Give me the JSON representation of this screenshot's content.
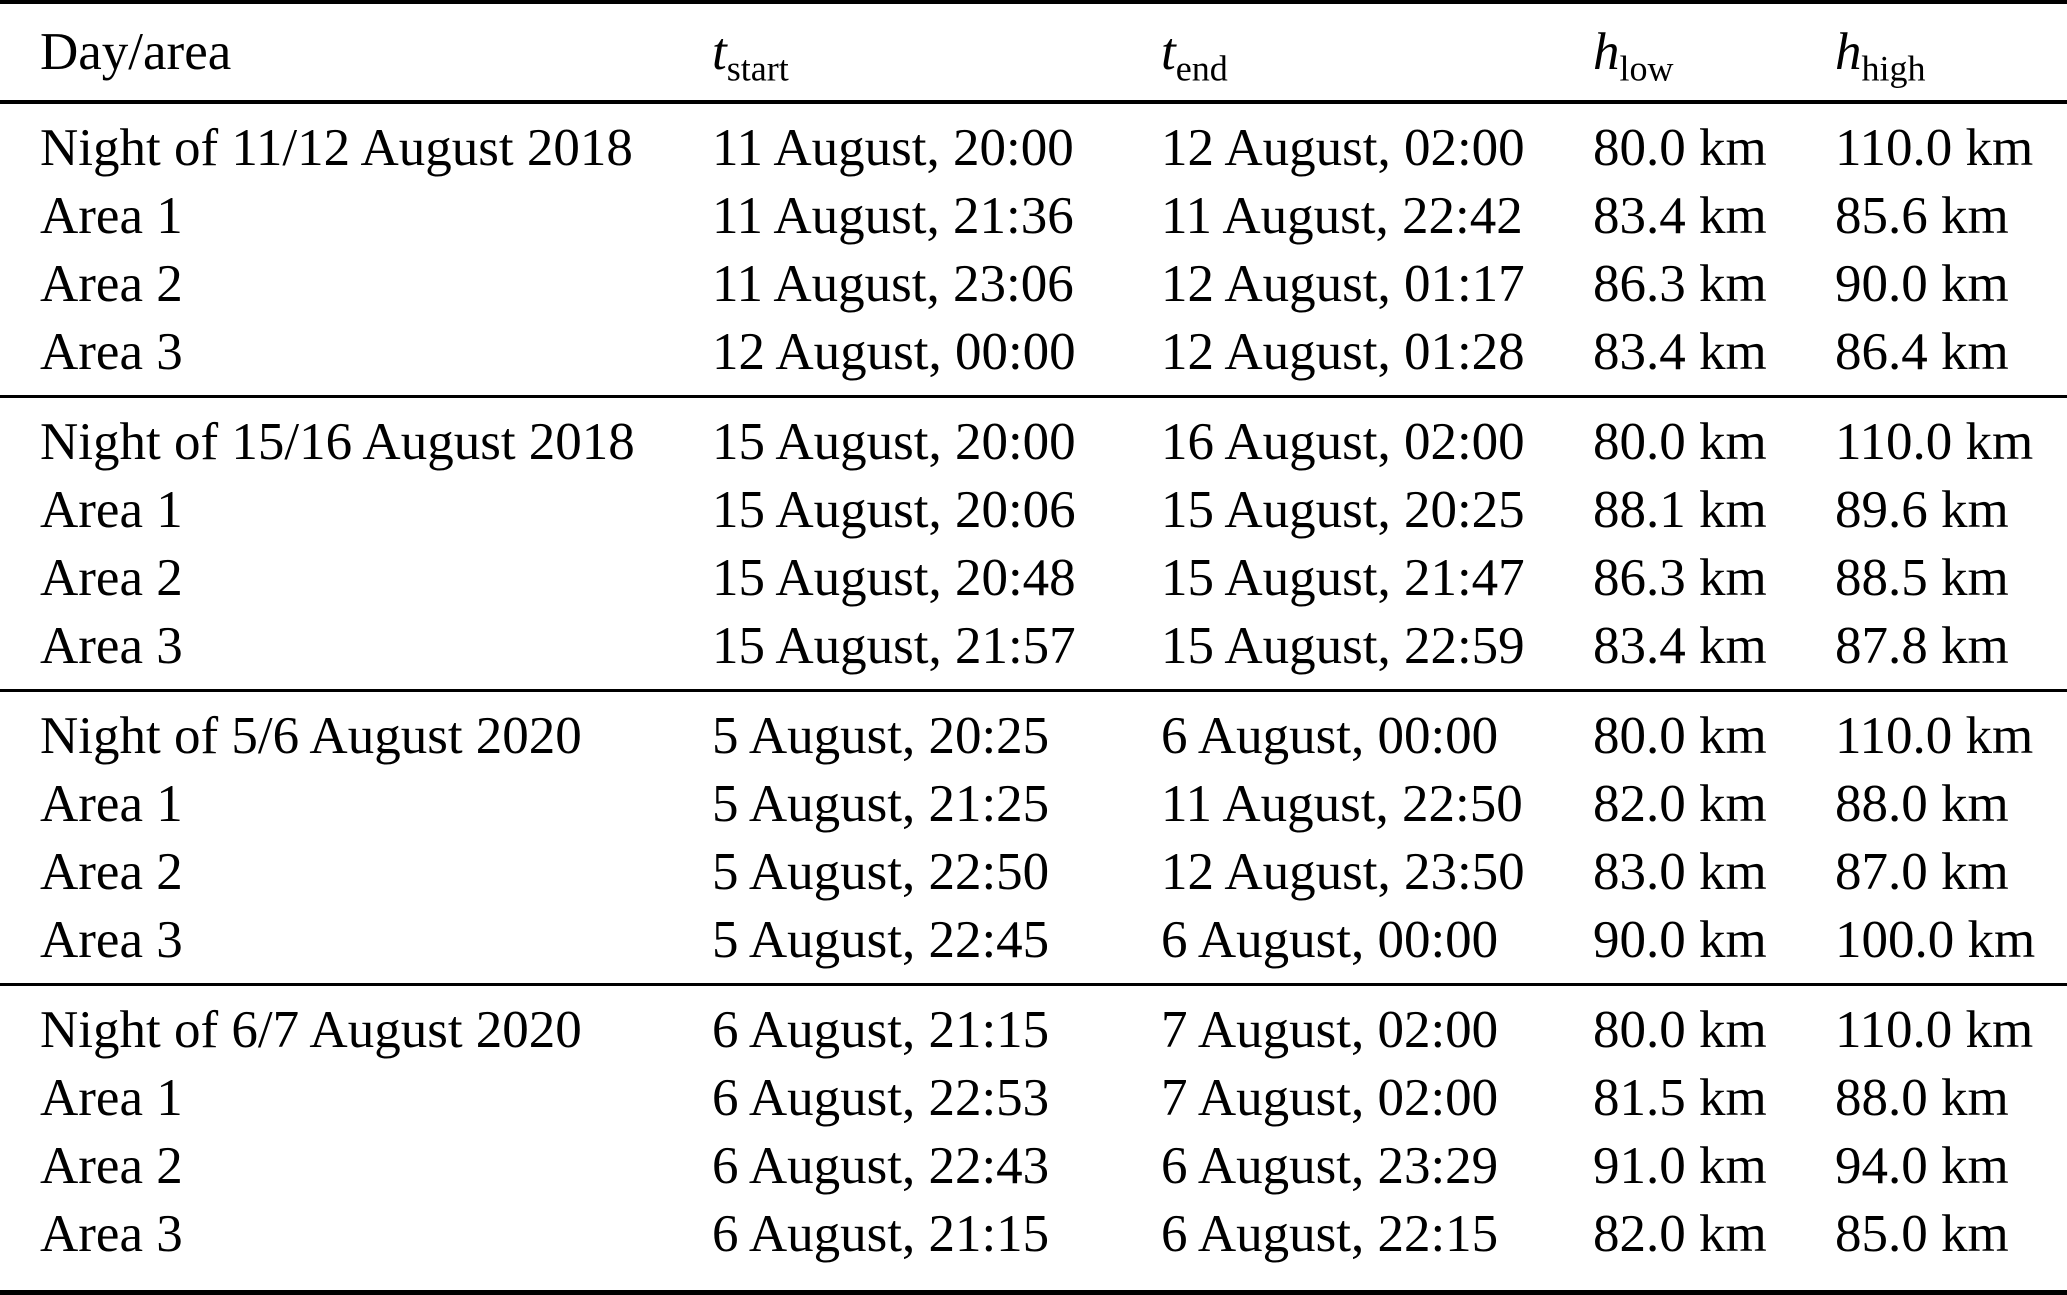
{
  "colors": {
    "background": "#ffffff",
    "text": "#000000",
    "rule": "#000000"
  },
  "table": {
    "columns": [
      {
        "key": "day_area",
        "label": "Day/area"
      },
      {
        "key": "t_start",
        "symbol": "t",
        "subscript": "start"
      },
      {
        "key": "t_end",
        "symbol": "t",
        "subscript": "end"
      },
      {
        "key": "h_low",
        "symbol": "h",
        "subscript": "low"
      },
      {
        "key": "h_high",
        "symbol": "h",
        "subscript": "high"
      }
    ],
    "groups": [
      {
        "rows": [
          {
            "day_area": "Night of 11/12 August 2018",
            "t_start": "11 August, 20:00",
            "t_end": "12 August, 02:00",
            "h_low": "80.0 km",
            "h_high": "110.0 km"
          },
          {
            "day_area": "Area 1",
            "t_start": "11 August, 21:36",
            "t_end": "11 August, 22:42",
            "h_low": "83.4 km",
            "h_high": "85.6 km"
          },
          {
            "day_area": "Area 2",
            "t_start": "11 August, 23:06",
            "t_end": "12 August, 01:17",
            "h_low": "86.3 km",
            "h_high": "90.0 km"
          },
          {
            "day_area": "Area 3",
            "t_start": "12 August, 00:00",
            "t_end": "12 August, 01:28",
            "h_low": "83.4 km",
            "h_high": "86.4 km"
          }
        ]
      },
      {
        "rows": [
          {
            "day_area": "Night of 15/16 August 2018",
            "t_start": "15 August, 20:00",
            "t_end": "16 August, 02:00",
            "h_low": "80.0 km",
            "h_high": "110.0 km"
          },
          {
            "day_area": "Area 1",
            "t_start": "15 August, 20:06",
            "t_end": "15 August, 20:25",
            "h_low": "88.1 km",
            "h_high": "89.6 km"
          },
          {
            "day_area": "Area 2",
            "t_start": "15 August, 20:48",
            "t_end": "15 August, 21:47",
            "h_low": "86.3 km",
            "h_high": "88.5 km"
          },
          {
            "day_area": "Area 3",
            "t_start": "15 August, 21:57",
            "t_end": "15 August, 22:59",
            "h_low": "83.4 km",
            "h_high": "87.8 km"
          }
        ]
      },
      {
        "rows": [
          {
            "day_area": "Night of 5/6 August 2020",
            "t_start": "5 August, 20:25",
            "t_end": "6 August, 00:00",
            "h_low": "80.0 km",
            "h_high": "110.0 km"
          },
          {
            "day_area": "Area 1",
            "t_start": "5 August, 21:25",
            "t_end": "11 August, 22:50",
            "h_low": "82.0 km",
            "h_high": "88.0 km"
          },
          {
            "day_area": "Area 2",
            "t_start": "5 August, 22:50",
            "t_end": "12 August, 23:50",
            "h_low": "83.0 km",
            "h_high": "87.0 km"
          },
          {
            "day_area": "Area 3",
            "t_start": "5 August, 22:45",
            "t_end": "6 August, 00:00",
            "h_low": "90.0 km",
            "h_high": "100.0 km"
          }
        ]
      },
      {
        "rows": [
          {
            "day_area": "Night of 6/7 August 2020",
            "t_start": "6 August, 21:15",
            "t_end": "7 August, 02:00",
            "h_low": "80.0 km",
            "h_high": "110.0 km"
          },
          {
            "day_area": "Area 1",
            "t_start": "6 August, 22:53",
            "t_end": "7 August, 02:00",
            "h_low": "81.5 km",
            "h_high": "88.0 km"
          },
          {
            "day_area": "Area 2",
            "t_start": "6 August, 22:43",
            "t_end": "6 August, 23:29",
            "h_low": "91.0 km",
            "h_high": "94.0 km"
          },
          {
            "day_area": "Area 3",
            "t_start": "6 August, 21:15",
            "t_end": "6 August, 22:15",
            "h_low": "82.0 km",
            "h_high": "85.0 km"
          }
        ]
      }
    ]
  }
}
